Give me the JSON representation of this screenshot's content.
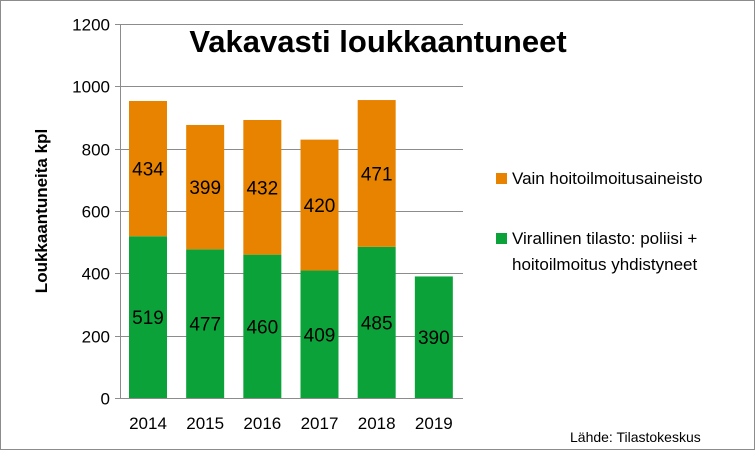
{
  "chart_data": {
    "type": "bar",
    "stacked": true,
    "title": "Vakavasti loukkaantuneet",
    "xlabel": "",
    "ylabel": "Loukkaantuneita kpl",
    "ylim": [
      0,
      1200
    ],
    "yticks": [
      0,
      200,
      400,
      600,
      800,
      1000,
      1200
    ],
    "grid": true,
    "legend_position": "right",
    "categories": [
      "2014",
      "2015",
      "2016",
      "2017",
      "2018",
      "2019"
    ],
    "series": [
      {
        "name": "Virallinen tilasto: poliisi + hoitoilmoitus yhdistyneet",
        "name_lines": [
          "Virallinen tilasto: poliisi +",
          "hoitoilmoitus yhdistyneet"
        ],
        "color": "#0ba339",
        "values": [
          519,
          477,
          460,
          409,
          485,
          390
        ]
      },
      {
        "name": "Vain hoitoilmoitusaineisto",
        "name_lines": [
          "Vain hoitoilmoitusaineisto"
        ],
        "color": "#e88300",
        "values": [
          434,
          399,
          432,
          420,
          471,
          null
        ]
      }
    ],
    "source": "Lähde: Tilastokeskus"
  }
}
